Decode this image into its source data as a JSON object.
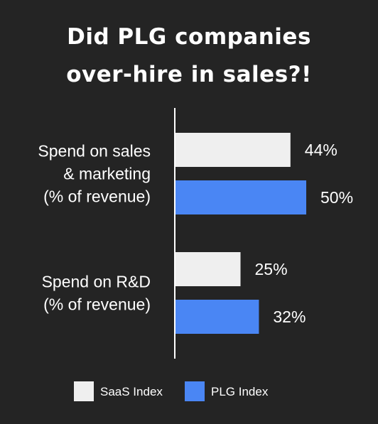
{
  "title_lines": [
    "Did PLG companies",
    "over-hire in sales?!"
  ],
  "colors": {
    "background": "#242424",
    "saas": "#efefef",
    "plg": "#4a86f4",
    "text": "#ffffff",
    "axis": "#ffffff"
  },
  "chart_data": {
    "type": "bar",
    "orientation": "horizontal",
    "title": "Did PLG companies over-hire in sales?!",
    "categories": [
      [
        "Spend on sales",
        "& marketing",
        "(% of revenue)"
      ],
      [
        "Spend on R&D",
        "(% of revenue)"
      ]
    ],
    "series": [
      {
        "name": "SaaS Index",
        "color": "#efefef",
        "values": [
          44,
          25
        ],
        "labels": [
          "44%",
          "25%"
        ]
      },
      {
        "name": "PLG Index",
        "color": "#4a86f4",
        "values": [
          50,
          32
        ],
        "labels": [
          "50%",
          "32%"
        ]
      }
    ],
    "xlim": [
      0,
      62
    ],
    "grid": false,
    "legend": "bottom"
  }
}
